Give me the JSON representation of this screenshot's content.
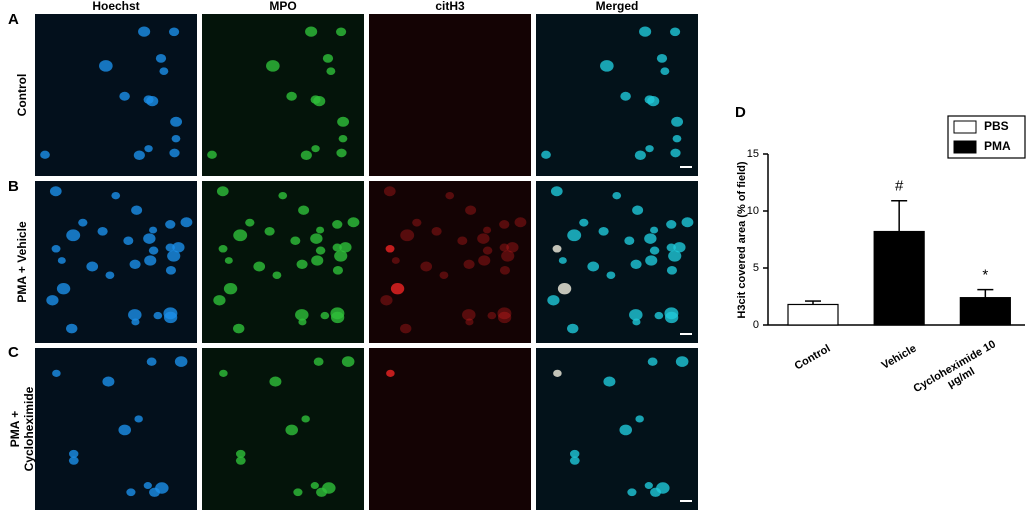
{
  "panel_labels": [
    "A",
    "B",
    "C",
    "D"
  ],
  "columns": [
    "Hoechst",
    "MPO",
    "citH3",
    "Merged"
  ],
  "rows": [
    "Control",
    "PMA + Vehicle",
    "PMA + Cycloheximide"
  ],
  "chart_data": {
    "type": "bar",
    "y_label": "H3cit covered area (% of field)",
    "categories": [
      "Control",
      "Vehicle",
      "Cycloheximide 10 μg/ml"
    ],
    "series": [
      {
        "name": "PBS",
        "color": "#ffffff",
        "values": [
          1.8,
          null,
          null
        ],
        "errors": [
          0.3,
          null,
          null
        ]
      },
      {
        "name": "PMA",
        "color": "#000000",
        "values": [
          null,
          8.2,
          2.4
        ],
        "errors": [
          null,
          2.7,
          0.7
        ]
      }
    ],
    "annotations": [
      null,
      "#",
      "*"
    ],
    "ylim": [
      0,
      15
    ],
    "yticks": [
      0,
      5,
      10,
      15
    ],
    "legend": "upper-right"
  }
}
